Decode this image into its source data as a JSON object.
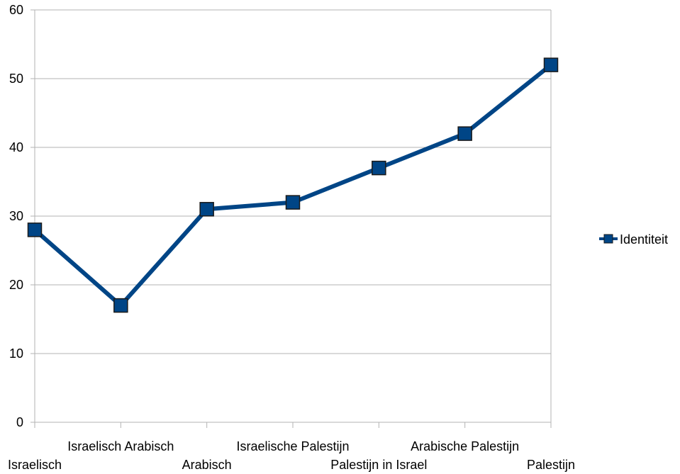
{
  "chart_data": {
    "type": "line",
    "categories": [
      "Israelisch",
      "Israelisch Arabisch",
      "Arabisch",
      "Israelische Palestijn",
      "Palestijn in Israel",
      "Arabische Palestijn",
      "Palestijn"
    ],
    "series": [
      {
        "name": "Identiteit",
        "values": [
          28,
          17,
          31,
          32,
          37,
          42,
          52
        ]
      }
    ],
    "ylim": [
      0,
      60
    ],
    "yticks": [
      0,
      10,
      20,
      30,
      40,
      50,
      60
    ],
    "grid": true,
    "legend_position": "right",
    "colors": {
      "line": "#004586",
      "marker_fill": "#004586",
      "marker_stroke": "#1a1a1a",
      "grid": "#b3b3b3",
      "axis": "#b3b3b3"
    }
  }
}
